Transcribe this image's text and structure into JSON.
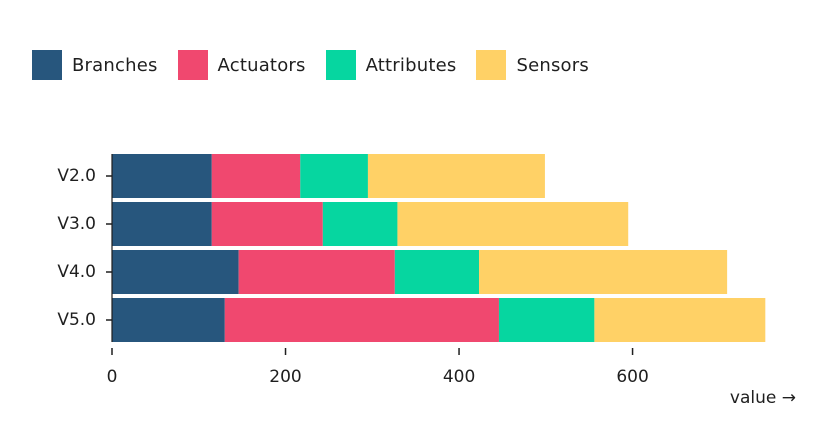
{
  "chart_data": {
    "type": "bar",
    "orientation": "horizontal",
    "stacked": true,
    "categories": [
      "V2.0",
      "V3.0",
      "V4.0",
      "V5.0"
    ],
    "series": [
      {
        "name": "Branches",
        "color": "#27567d",
        "values": [
          115,
          115,
          146,
          130
        ]
      },
      {
        "name": "Actuators",
        "color": "#f0486f",
        "values": [
          102,
          128,
          180,
          316
        ]
      },
      {
        "name": "Attributes",
        "color": "#06d6a0",
        "values": [
          78,
          86,
          97,
          110
        ]
      },
      {
        "name": "Sensors",
        "color": "#ffd166",
        "values": [
          204,
          266,
          286,
          197
        ]
      }
    ],
    "xlabel": "value →",
    "ylabel": "",
    "xlim": [
      0,
      750
    ],
    "xticks": [
      0,
      200,
      400,
      600
    ],
    "legend_position": "top-left",
    "grid": false
  }
}
